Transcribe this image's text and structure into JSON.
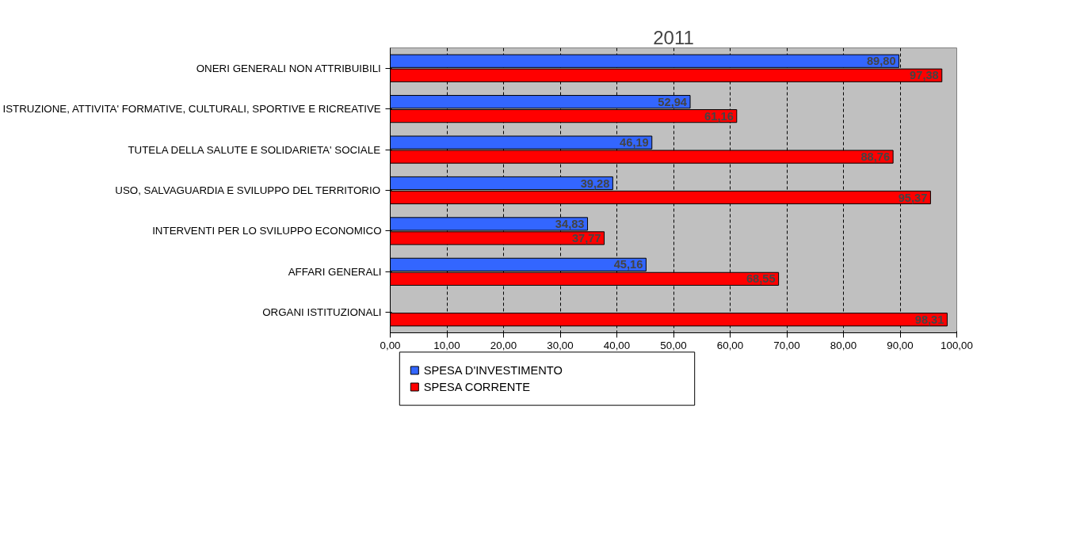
{
  "chart_data": {
    "type": "bar",
    "orientation": "horizontal",
    "title": "2011",
    "categories": [
      "ONERI GENERALI NON ATTRIBUIBILI",
      "ISTRUZIONE, ATTIVITA' FORMATIVE, CULTURALI, SPORTIVE E RICREATIVE",
      "TUTELA DELLA SALUTE E SOLIDARIETA' SOCIALE",
      "USO, SALVAGUARDIA E SVILUPPO DEL TERRITORIO",
      "INTERVENTI PER LO SVILUPPO ECONOMICO",
      "AFFARI GENERALI",
      "ORGANI ISTITUZIONALI"
    ],
    "series": [
      {
        "name": "SPESA D'INVESTIMENTO",
        "color": "#3366ff",
        "values": [
          89.8,
          52.94,
          46.19,
          39.28,
          34.83,
          45.16,
          null
        ],
        "value_labels": [
          "89,80",
          "52,94",
          "46,19",
          "39,28",
          "34,83",
          "45,16",
          null
        ]
      },
      {
        "name": "SPESA CORRENTE",
        "color": "#ff0000",
        "values": [
          97.38,
          61.16,
          88.76,
          95.37,
          37.77,
          68.55,
          98.31
        ],
        "value_labels": [
          "97,38",
          "61,16",
          "88,76",
          "95,37",
          "37,77",
          "68,55",
          "98,31"
        ]
      }
    ],
    "xlim": [
      0,
      100
    ],
    "xticks": [
      {
        "value": 0,
        "label": "0,00"
      },
      {
        "value": 10,
        "label": "10,00"
      },
      {
        "value": 20,
        "label": "20,00"
      },
      {
        "value": 30,
        "label": "30,00"
      },
      {
        "value": 40,
        "label": "40,00"
      },
      {
        "value": 50,
        "label": "50,00"
      },
      {
        "value": 60,
        "label": "60,00"
      },
      {
        "value": 70,
        "label": "70,00"
      },
      {
        "value": 80,
        "label": "80,00"
      },
      {
        "value": 90,
        "label": "90,00"
      },
      {
        "value": 100,
        "label": "100,00"
      }
    ],
    "grid": "x",
    "legend": "bottom"
  }
}
